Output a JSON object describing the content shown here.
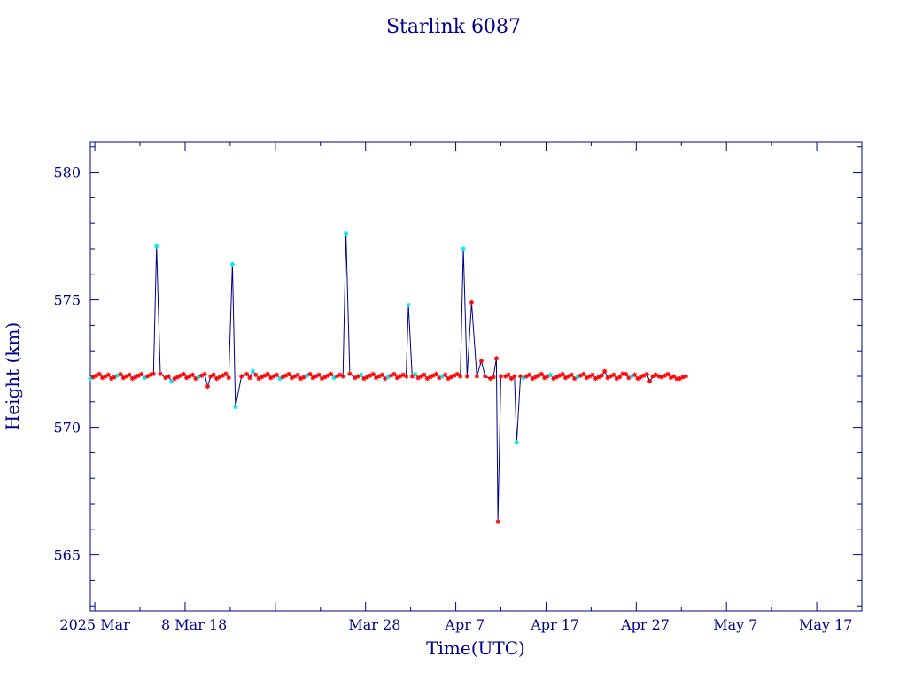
{
  "chart_data": {
    "type": "line",
    "title": "Starlink 6087",
    "xlabel": "Time(UTC)",
    "ylabel": "Height (km)",
    "x_unit": "date (UTC, 2025)",
    "xlim": [
      "2025-02-24T12:00",
      "2025-05-21T00:00"
    ],
    "ylim": [
      562.8,
      581.2
    ],
    "x_ticks": [
      {
        "date": "2025-02-25",
        "label": "2025 Mar"
      },
      {
        "date": "2025-03-08",
        "label": "8 Mar 18"
      },
      {
        "date": "2025-03-28",
        "label": "Mar 28"
      },
      {
        "date": "2025-04-07",
        "label": "Apr  7"
      },
      {
        "date": "2025-04-17",
        "label": "Apr 17"
      },
      {
        "date": "2025-04-27",
        "label": "Apr 27"
      },
      {
        "date": "2025-05-07",
        "label": "May  7"
      },
      {
        "date": "2025-05-17",
        "label": "May 17"
      }
    ],
    "y_ticks": [
      565,
      570,
      575,
      580
    ],
    "grid": false,
    "legend": "none",
    "colors": {
      "line": "#00008b",
      "marker_normal": "#ff0000",
      "marker_flagged": "#00e5ee",
      "text": "#00008b"
    },
    "baseline_km": 572.0,
    "baseline_range": [
      "2025-02-24T12:00",
      "2025-05-01T12:00"
    ],
    "series": [
      {
        "points": [
          {
            "x": "2025-03-03T12:00",
            "y": 572.1
          },
          {
            "x": "2025-03-03T20:00",
            "y": 577.1,
            "marker": "flagged"
          },
          {
            "x": "2025-03-04T06:00",
            "y": 572.1
          },
          {
            "x": "2025-03-05T12:00",
            "y": 571.8,
            "marker": "flagged"
          },
          {
            "x": "2025-03-09T12:00",
            "y": 571.6
          },
          {
            "x": "2025-03-11T12:00",
            "y": 572.1
          },
          {
            "x": "2025-03-12T06:00",
            "y": 576.4,
            "marker": "flagged"
          },
          {
            "x": "2025-03-12T14:00",
            "y": 570.8,
            "marker": "flagged"
          },
          {
            "x": "2025-03-13T06:00",
            "y": 572.0
          },
          {
            "x": "2025-03-14T12:00",
            "y": 572.2,
            "marker": "flagged"
          },
          {
            "x": "2025-03-24T12:00",
            "y": 572.0
          },
          {
            "x": "2025-03-24T20:00",
            "y": 577.6,
            "marker": "flagged"
          },
          {
            "x": "2025-03-25T06:00",
            "y": 572.1
          },
          {
            "x": "2025-03-31T12:00",
            "y": 572.0
          },
          {
            "x": "2025-03-31T18:00",
            "y": 574.8,
            "marker": "flagged"
          },
          {
            "x": "2025-04-01T04:00",
            "y": 572.0
          },
          {
            "x": "2025-04-06T12:00",
            "y": 572.0
          },
          {
            "x": "2025-04-06T20:00",
            "y": 577.0,
            "marker": "flagged"
          },
          {
            "x": "2025-04-07T06:00",
            "y": 572.0
          },
          {
            "x": "2025-04-07T18:00",
            "y": 574.9
          },
          {
            "x": "2025-04-08T08:00",
            "y": 572.0
          },
          {
            "x": "2025-04-08T20:00",
            "y": 572.6
          },
          {
            "x": "2025-04-09T06:00",
            "y": 572.0
          },
          {
            "x": "2025-04-10T12:00",
            "y": 572.7
          },
          {
            "x": "2025-04-10T16:00",
            "y": 566.3
          },
          {
            "x": "2025-04-11T00:00",
            "y": 572.0
          },
          {
            "x": "2025-04-12T12:00",
            "y": 572.0
          },
          {
            "x": "2025-04-12T18:00",
            "y": 569.4,
            "marker": "flagged"
          },
          {
            "x": "2025-04-13T04:00",
            "y": 572.0
          },
          {
            "x": "2025-04-22T12:00",
            "y": 572.2
          },
          {
            "x": "2025-04-24T12:00",
            "y": 572.1
          },
          {
            "x": "2025-04-27T12:00",
            "y": 571.8
          },
          {
            "x": "2025-04-28T12:00",
            "y": 572.0
          },
          {
            "x": "2025-04-30T12:00",
            "y": 571.9
          },
          {
            "x": "2025-05-01T12:00",
            "y": 572.0
          }
        ]
      }
    ]
  }
}
